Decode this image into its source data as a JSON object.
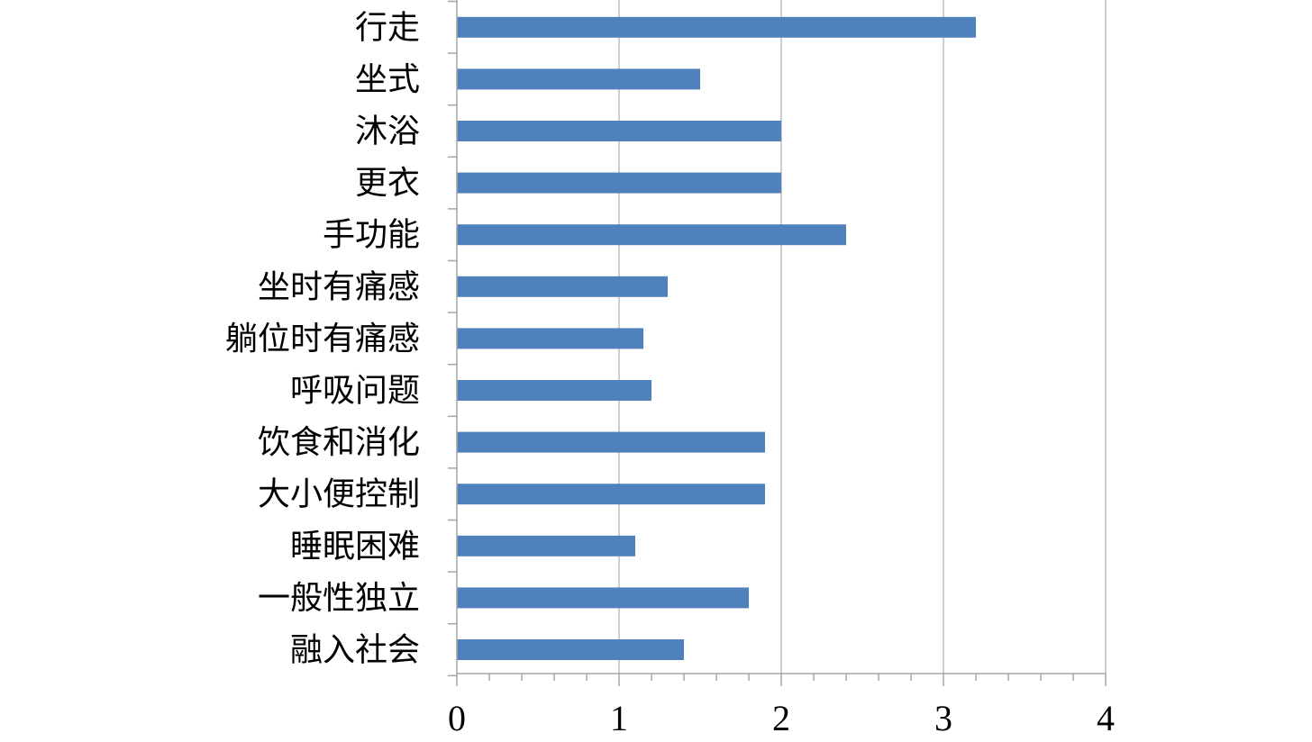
{
  "chart_data": {
    "type": "bar",
    "orientation": "horizontal",
    "categories": [
      "行走",
      "坐式",
      "沐浴",
      "更衣",
      "手功能",
      "坐时有痛感",
      "躺位时有痛感",
      "呼吸问题",
      "饮食和消化",
      "大小便控制",
      "睡眠困难",
      "一般性独立",
      "融入社会"
    ],
    "values": [
      3.2,
      1.5,
      2.0,
      2.0,
      2.4,
      1.3,
      1.15,
      1.2,
      1.9,
      1.9,
      1.1,
      1.8,
      1.4
    ],
    "xlim": [
      0,
      4
    ],
    "xticks": [
      "0",
      "1",
      "2",
      "3",
      "4"
    ],
    "grid": "vertical",
    "legend": "none",
    "colors": {
      "bar": "#4F81BD",
      "grid": "#BFBFBF",
      "axis": "#A6A6A6"
    }
  }
}
